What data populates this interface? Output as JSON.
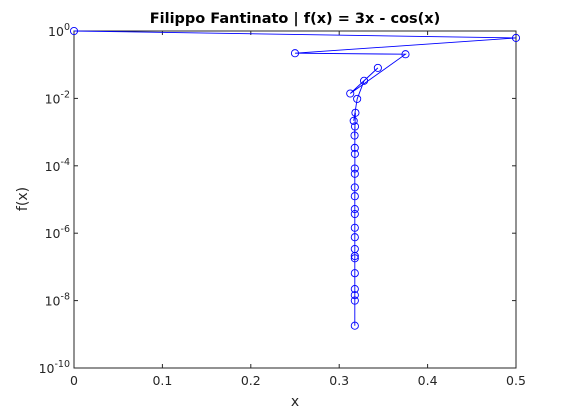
{
  "chart_data": {
    "type": "line",
    "title": "Filippo Fantinato | f(x) = 3x - cos(x)",
    "xlabel": "x",
    "ylabel": "f(x)",
    "y_scale": "log",
    "xlim": [
      0,
      0.5
    ],
    "ylim": [
      1e-10,
      1
    ],
    "x_ticks": [
      "0",
      "0.1",
      "0.2",
      "0.3",
      "0.4",
      "0.5"
    ],
    "y_ticks": [
      {
        "base": "10",
        "exp": "0"
      },
      {
        "base": "10",
        "exp": "-2"
      },
      {
        "base": "10",
        "exp": "-4"
      },
      {
        "base": "10",
        "exp": "-6"
      },
      {
        "base": "10",
        "exp": "-8"
      },
      {
        "base": "10",
        "exp": "-10"
      }
    ],
    "grid": false,
    "marker": "circle",
    "colors": {
      "series": "#0000ff",
      "axes": "#262626"
    },
    "series": [
      {
        "x": [
          0,
          0.5,
          0.25,
          0.375,
          0.3125,
          0.34375,
          0.328125,
          0.3203125,
          0.31640625,
          0.318359375,
          0.3173828125,
          0.31787109375,
          0.317626953125,
          0.3177490234375,
          0.31768798828125,
          0.317657470703125,
          0.3176727294921875,
          0.31766510009765625,
          0.3176612854003906,
          0.31766319274902344,
          0.31766223907470703,
          0.31766176223754883,
          0.31766200065612793,
          0.3176618814468384,
          0.31766194105148315,
          0.31766197085380554,
          0.31766198575496674,
          0.31766197830438614,
          0.31766198202967644,
          0.3176619838923216
        ],
        "y": [
          1,
          0.6224,
          0.2189,
          0.2047,
          0.01397,
          0.08043,
          0.03326,
          0.00965,
          0.00216,
          0.00374,
          0.000792,
          0.00147,
          0.000341,
          0.000225,
          5.8e-05,
          8.3e-05,
          1.25e-05,
          2.29e-05,
          5.2e-06,
          3.7e-06,
          7.6e-07,
          1.45e-06,
          3.4e-07,
          2.1e-07,
          6.5e-08,
          2.2e-08,
          1.45e-08,
          1e-08,
          1.8e-07,
          1.8e-09
        ]
      }
    ]
  }
}
